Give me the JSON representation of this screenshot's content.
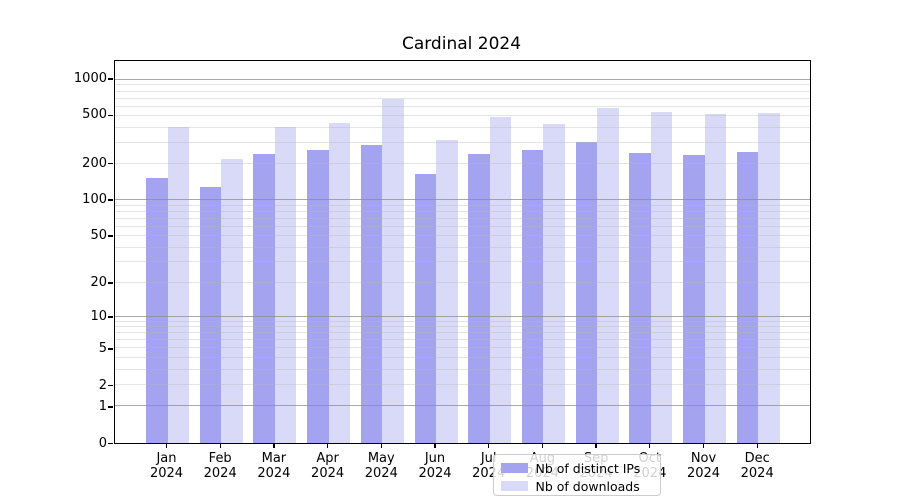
{
  "title": "Cardinal 2024",
  "colors": {
    "bar_distinct_ips": "#a3a3f0",
    "bar_downloads": "#d9d9f8",
    "grid_major": "#8c8c8c",
    "grid_minor": "#b9b9b9",
    "axis": "#000000",
    "legend_border": "#cccccc"
  },
  "legend": {
    "items": [
      {
        "label": "Nb of distinct IPs"
      },
      {
        "label": "Nb of downloads"
      }
    ]
  },
  "chart_data": {
    "type": "bar",
    "title": "Cardinal 2024",
    "categories": [
      "Jan",
      "Feb",
      "Mar",
      "Apr",
      "May",
      "Jun",
      "Jul",
      "Aug",
      "Sep",
      "Oct",
      "Nov",
      "Dec"
    ],
    "category_year": "2024",
    "series": [
      {
        "name": "Nb of distinct IPs",
        "color": "#a3a3f0",
        "values": [
          150,
          125,
          235,
          255,
          279,
          162,
          235,
          253,
          294,
          242,
          233,
          244
        ]
      },
      {
        "name": "Nb of downloads",
        "color": "#d9d9f8",
        "values": [
          395,
          213,
          391,
          427,
          670,
          307,
          478,
          416,
          561,
          523,
          504,
          513
        ]
      }
    ],
    "y_scale": "log1p",
    "y_ticks": [
      0,
      1,
      2,
      5,
      10,
      20,
      50,
      100,
      200,
      500,
      1000
    ],
    "ylim": [
      0,
      1433
    ],
    "grid": true,
    "legend_location": "lower center inside plot"
  }
}
